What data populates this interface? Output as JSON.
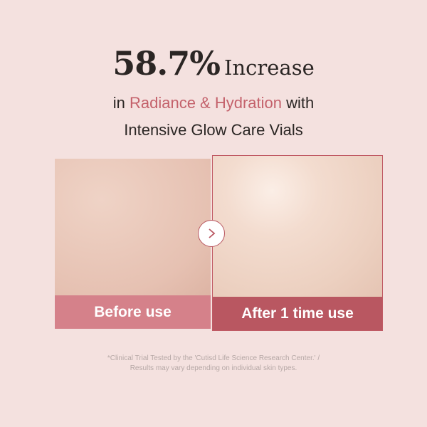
{
  "headline": {
    "percent": "58.7%",
    "word": "Increase"
  },
  "subtitle": {
    "prefix": "in ",
    "highlight": "Radiance & Hydration",
    "suffix": " with",
    "line2": "Intensive Glow Care Vials"
  },
  "comparison": {
    "before_label": "Before use",
    "after_label": "After 1 time use",
    "arrow_icon": "chevron-right-icon"
  },
  "footnote": {
    "line1": "*Clinical Trial Tested by the 'Cutisd Life Science Research Center.' /",
    "line2": "Results may vary depending on individual skin types."
  },
  "colors": {
    "background": "#f4e1df",
    "accent": "#c4616b",
    "before_label_bg": "#d5818a",
    "after_label_bg": "#b95761"
  }
}
